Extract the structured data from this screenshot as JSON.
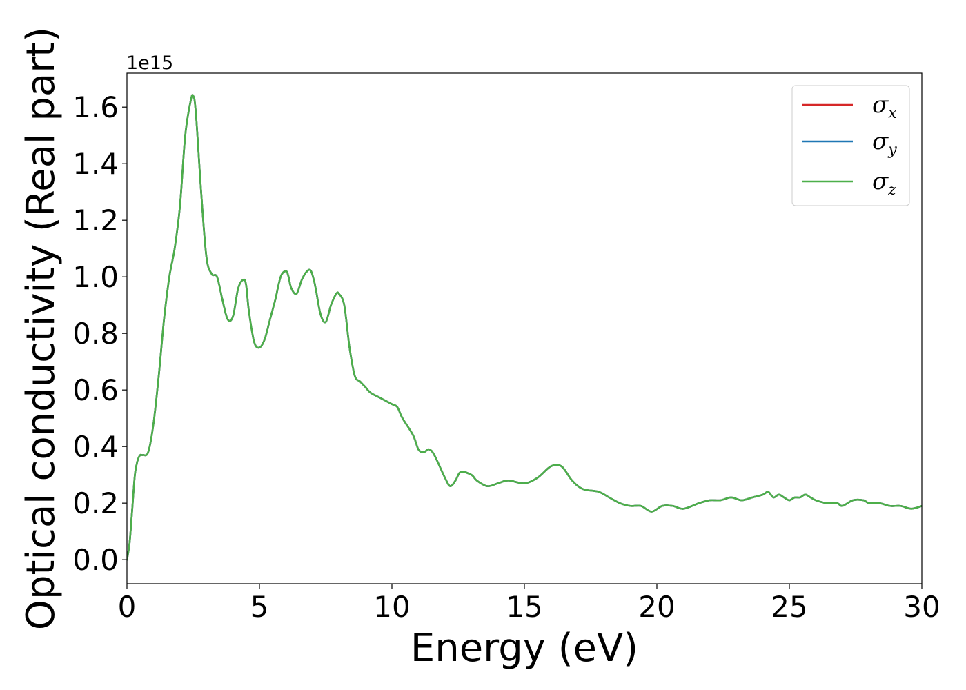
{
  "chart_data": {
    "type": "line",
    "xlabel": "Energy (eV)",
    "ylabel": "Optical conductivity (Real part)",
    "y_offset_label": "1e15",
    "xlim": [
      0,
      30
    ],
    "ylim": [
      -0.085,
      1.72
    ],
    "x_ticks": [
      0,
      5,
      10,
      15,
      20,
      25,
      30
    ],
    "x_tick_labels": [
      "0",
      "5",
      "10",
      "15",
      "20",
      "25",
      "30"
    ],
    "y_ticks": [
      0.0,
      0.2,
      0.4,
      0.6,
      0.8,
      1.0,
      1.2,
      1.4,
      1.6
    ],
    "y_tick_labels": [
      "0.0",
      "0.2",
      "0.4",
      "0.6",
      "0.8",
      "1.0",
      "1.2",
      "1.4",
      "1.6"
    ],
    "grid": false,
    "legend_position": "top-right",
    "series": [
      {
        "name": "σx",
        "symbol": "σ",
        "subscript": "x",
        "color": "#d62728",
        "values": "same as σz"
      },
      {
        "name": "σy",
        "symbol": "σ",
        "subscript": "y",
        "color": "#1f77b4",
        "values": "same as σz"
      },
      {
        "name": "σz",
        "symbol": "σ",
        "subscript": "z",
        "color": "#4daf4a"
      }
    ],
    "x": [
      0,
      0.1,
      0.2,
      0.3,
      0.4,
      0.5,
      0.6,
      0.8,
      1.0,
      1.2,
      1.4,
      1.6,
      1.8,
      2.0,
      2.2,
      2.4,
      2.5,
      2.6,
      2.8,
      3.0,
      3.2,
      3.4,
      3.6,
      3.8,
      4.0,
      4.2,
      4.4,
      4.5,
      4.6,
      4.8,
      5.0,
      5.2,
      5.4,
      5.6,
      5.8,
      6.0,
      6.1,
      6.2,
      6.4,
      6.6,
      6.8,
      6.95,
      7.1,
      7.3,
      7.5,
      7.7,
      7.9,
      8.0,
      8.2,
      8.4,
      8.6,
      8.8,
      9.0,
      9.2,
      9.6,
      10.0,
      10.2,
      10.4,
      10.8,
      11.0,
      11.2,
      11.4,
      11.6,
      12.0,
      12.2,
      12.4,
      12.6,
      13.0,
      13.2,
      13.6,
      14.0,
      14.4,
      15.0,
      15.5,
      16.0,
      16.4,
      16.8,
      17.2,
      17.8,
      18.2,
      18.6,
      19.0,
      19.4,
      19.8,
      20.2,
      20.6,
      21.0,
      21.6,
      22.0,
      22.4,
      22.8,
      23.2,
      23.6,
      24.0,
      24.2,
      24.4,
      24.6,
      24.8,
      25.0,
      25.2,
      25.4,
      25.6,
      25.8,
      26.0,
      26.4,
      26.8,
      27.0,
      27.4,
      27.8,
      28.0,
      28.4,
      28.8,
      29.2,
      29.6,
      30.0
    ],
    "y": [
      0.0,
      0.06,
      0.18,
      0.3,
      0.35,
      0.37,
      0.37,
      0.38,
      0.48,
      0.65,
      0.85,
      1.0,
      1.1,
      1.25,
      1.5,
      1.62,
      1.64,
      1.58,
      1.3,
      1.07,
      1.01,
      1.0,
      0.92,
      0.85,
      0.86,
      0.96,
      0.99,
      0.97,
      0.88,
      0.77,
      0.75,
      0.78,
      0.85,
      0.92,
      1.0,
      1.02,
      1.0,
      0.96,
      0.94,
      0.99,
      1.02,
      1.02,
      0.97,
      0.87,
      0.84,
      0.9,
      0.94,
      0.94,
      0.9,
      0.75,
      0.65,
      0.63,
      0.61,
      0.59,
      0.57,
      0.55,
      0.54,
      0.5,
      0.44,
      0.39,
      0.38,
      0.39,
      0.37,
      0.29,
      0.26,
      0.28,
      0.31,
      0.3,
      0.28,
      0.26,
      0.27,
      0.28,
      0.27,
      0.29,
      0.33,
      0.33,
      0.28,
      0.25,
      0.24,
      0.22,
      0.2,
      0.19,
      0.19,
      0.17,
      0.19,
      0.19,
      0.18,
      0.2,
      0.21,
      0.21,
      0.22,
      0.21,
      0.22,
      0.23,
      0.24,
      0.22,
      0.23,
      0.22,
      0.21,
      0.22,
      0.22,
      0.23,
      0.22,
      0.21,
      0.2,
      0.2,
      0.19,
      0.21,
      0.21,
      0.2,
      0.2,
      0.19,
      0.19,
      0.18,
      0.19
    ]
  }
}
